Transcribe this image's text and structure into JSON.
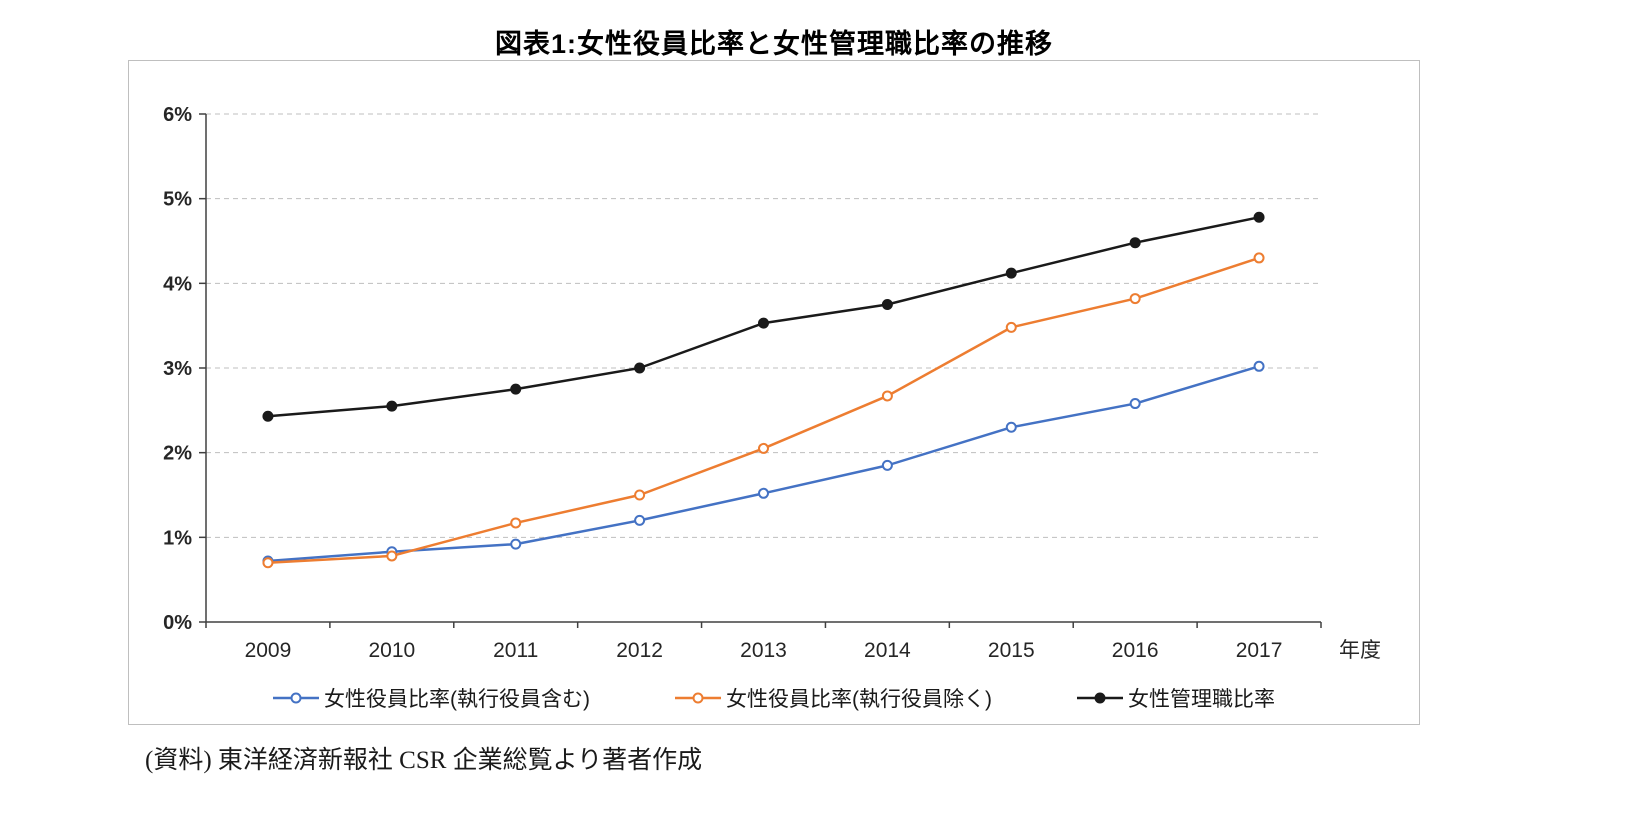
{
  "title": "図表1:女性役員比率と女性管理職比率の推移",
  "source_note": "(資料) 東洋経済新報社 CSR 企業総覧より著者作成",
  "chart_data": {
    "type": "line",
    "title": "図表1:女性役員比率と女性管理職比率の推移",
    "categories": [
      "2009",
      "2010",
      "2011",
      "2012",
      "2013",
      "2014",
      "2015",
      "2016",
      "2017"
    ],
    "x_axis_unit": "年度",
    "series": [
      {
        "name": "女性役員比率(執行役員含む)",
        "color": "#4472C4",
        "marker": "circle-open",
        "values": [
          0.72,
          0.83,
          0.92,
          1.2,
          1.52,
          1.85,
          2.3,
          2.58,
          3.02
        ]
      },
      {
        "name": "女性役員比率(執行役員除く)",
        "color": "#ED7D31",
        "marker": "circle-open",
        "values": [
          0.7,
          0.78,
          1.17,
          1.5,
          2.05,
          2.67,
          3.48,
          3.82,
          4.3
        ]
      },
      {
        "name": "女性管理職比率",
        "color": "#1a1a1a",
        "marker": "circle-filled",
        "values": [
          2.43,
          2.55,
          2.75,
          3.0,
          3.53,
          3.75,
          4.12,
          4.48,
          4.78
        ]
      }
    ],
    "ylim": [
      0,
      6
    ],
    "y_ticks": [
      "0%",
      "1%",
      "2%",
      "3%",
      "4%",
      "5%",
      "6%"
    ],
    "grid": "horizontal-dashed",
    "grid_color": "#bfbfbf",
    "axis_color": "#404040",
    "legend_position": "bottom"
  }
}
